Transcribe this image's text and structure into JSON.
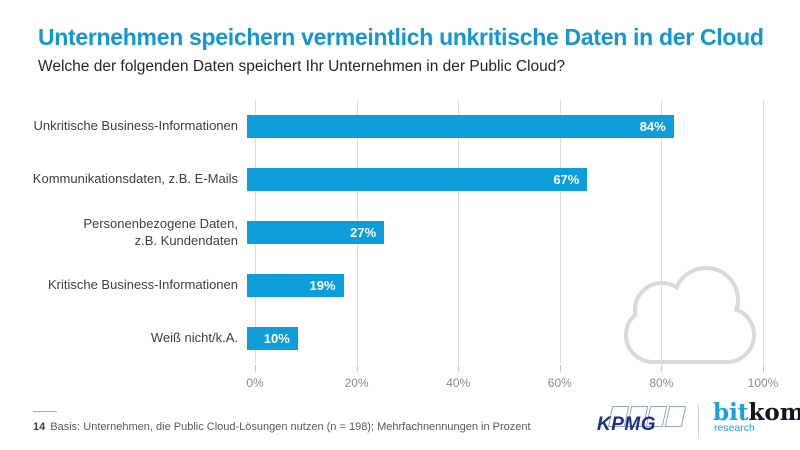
{
  "header": {
    "title": "Unternehmen speichern vermeintlich unkritische Daten in der Cloud",
    "subtitle": "Welche der folgenden Daten speichert Ihr Unternehmen in der Public Cloud?"
  },
  "chart_data": {
    "type": "bar",
    "orientation": "horizontal",
    "categories": [
      "Unkritische Business-Informationen",
      "Kommunikationsdaten, z.B. E-Mails",
      "Personenbezogene Daten, z.B. Kundendaten",
      "Kritische Business-Informationen",
      "Weiß nicht/k.A."
    ],
    "categories_display": [
      "Unkritische Business-Informationen",
      "Kommunikationsdaten, z.B. E-Mails",
      "Personenbezogene Daten,\nz.B. Kundendaten",
      "Kritische Business-Informationen",
      "Weiß nicht/k.A."
    ],
    "values": [
      84,
      67,
      27,
      19,
      10
    ],
    "value_labels": [
      "84%",
      "67%",
      "27%",
      "19%",
      "10%"
    ],
    "unit": "percent",
    "xlim": [
      0,
      100
    ],
    "x_ticks": [
      0,
      20,
      40,
      60,
      80,
      100
    ],
    "x_tick_labels": [
      "0%",
      "20%",
      "40%",
      "60%",
      "80%",
      "100%"
    ],
    "grid": true,
    "legend": false,
    "bar_color": "#0d9ddb",
    "value_label_color": "#ffffff"
  },
  "watermark": {
    "icon": "cloud-icon",
    "color": "#d9d9d9"
  },
  "footer": {
    "page_number": "14",
    "basis_note": "Basis: Unternehmen, die Public Cloud-Lösungen nutzen (n = 198); Mehrfachnennungen in Prozent"
  },
  "logos": {
    "kpmg_text": "KPMG",
    "bitkom_part1": "bit",
    "bitkom_part2": "kom",
    "bitkom_sub": "research"
  },
  "colors": {
    "title_blue": "#1197d5",
    "bar_blue": "#0d9ddb",
    "gridline": "#dcdcdc",
    "kpmg_navy": "#1d2f86",
    "bitkom_cyan": "#18a3dc",
    "bitkom_dark": "#15151f"
  }
}
